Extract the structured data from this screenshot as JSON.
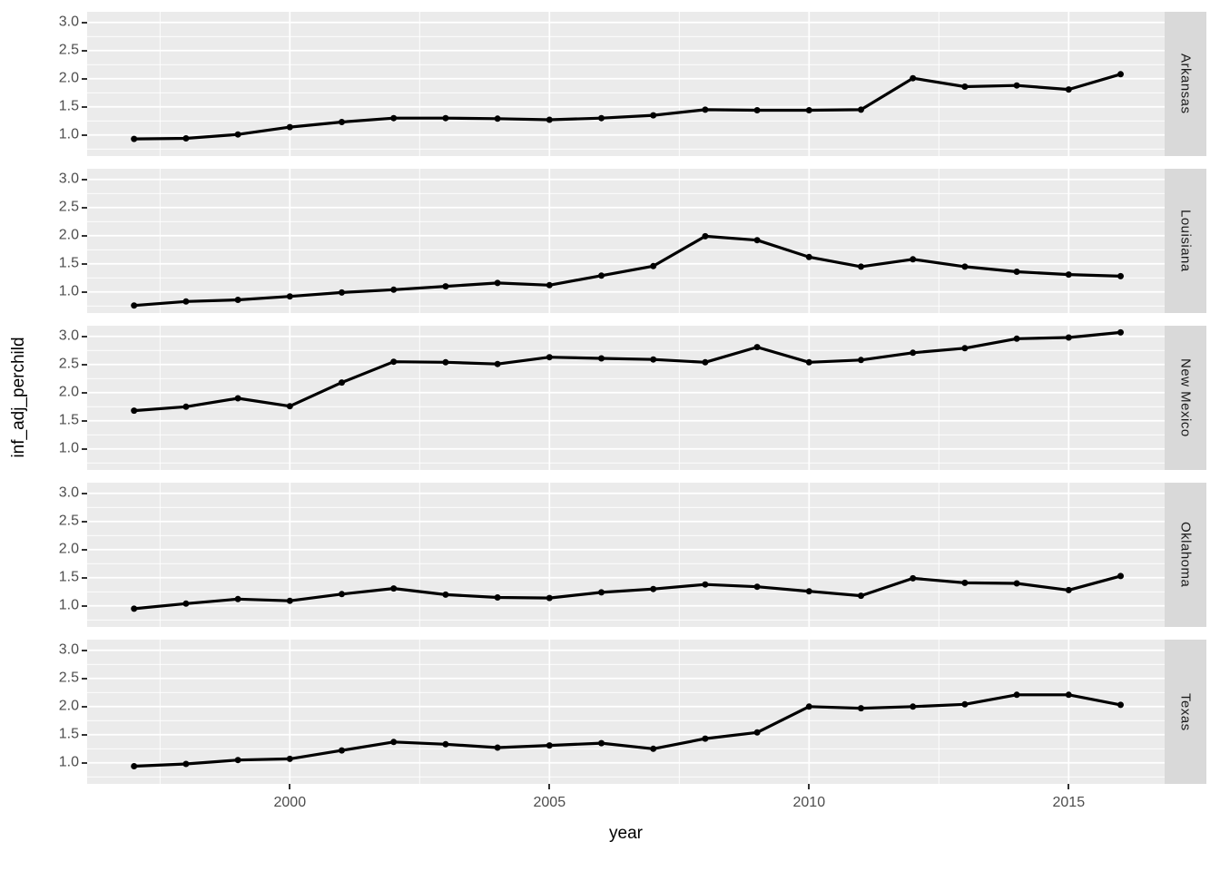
{
  "axes": {
    "x_label": "year",
    "y_label": "inf_adj_perchild"
  },
  "colors": {
    "panel_bg": "#EBEBEB",
    "strip_bg": "#D9D9D9",
    "grid": "#FFFFFF",
    "line": "#000000",
    "point": "#000000",
    "tick_text": "#4D4D4D",
    "tick_mark": "#333333",
    "axis_title": "#000000"
  },
  "chart_data": {
    "type": "line",
    "faceted": true,
    "facet_position": "right-strip",
    "title": "",
    "xlabel": "year",
    "ylabel": "inf_adj_perchild",
    "x": [
      1997,
      1998,
      1999,
      2000,
      2001,
      2002,
      2003,
      2004,
      2005,
      2006,
      2007,
      2008,
      2009,
      2010,
      2011,
      2012,
      2013,
      2014,
      2015,
      2016
    ],
    "facets": [
      {
        "label": "Arkansas",
        "values": [
          0.93,
          0.94,
          1.01,
          1.14,
          1.23,
          1.3,
          1.3,
          1.29,
          1.27,
          1.3,
          1.35,
          1.45,
          1.44,
          1.44,
          1.45,
          2.01,
          1.86,
          1.88,
          1.81,
          2.08
        ]
      },
      {
        "label": "Louisiana",
        "values": [
          0.76,
          0.83,
          0.86,
          0.92,
          0.99,
          1.04,
          1.1,
          1.16,
          1.12,
          1.29,
          1.46,
          1.99,
          1.92,
          1.62,
          1.45,
          1.58,
          1.45,
          1.36,
          1.31,
          1.28
        ]
      },
      {
        "label": "New Mexico",
        "values": [
          1.68,
          1.75,
          1.9,
          1.76,
          2.18,
          2.55,
          2.54,
          2.51,
          2.63,
          2.61,
          2.59,
          2.54,
          2.81,
          2.54,
          2.58,
          2.71,
          2.79,
          2.96,
          2.98,
          3.07
        ]
      },
      {
        "label": "Oklahoma",
        "values": [
          0.95,
          1.04,
          1.12,
          1.09,
          1.21,
          1.31,
          1.2,
          1.15,
          1.14,
          1.24,
          1.3,
          1.38,
          1.34,
          1.26,
          1.18,
          1.49,
          1.41,
          1.4,
          1.28,
          1.53
        ]
      },
      {
        "label": "Texas",
        "values": [
          0.94,
          0.98,
          1.05,
          1.07,
          1.22,
          1.37,
          1.33,
          1.27,
          1.31,
          1.35,
          1.25,
          1.43,
          1.54,
          2.0,
          1.97,
          2.0,
          2.04,
          2.21,
          2.21,
          2.03
        ]
      }
    ],
    "y_ticks": [
      3.0,
      2.5,
      2.0,
      1.5,
      1.0
    ],
    "y_minor_gridlines": [
      0.75,
      1.25,
      1.75,
      2.25,
      2.75
    ],
    "x_ticks": [
      2000,
      2005,
      2010,
      2015
    ],
    "x_minor_gridlines": [
      1997.5,
      2002.5,
      2007.5,
      2012.5
    ],
    "ylim": [
      0.625,
      3.19
    ],
    "xlim": [
      1996.1,
      2016.85
    ],
    "grid": true,
    "legend": false
  }
}
